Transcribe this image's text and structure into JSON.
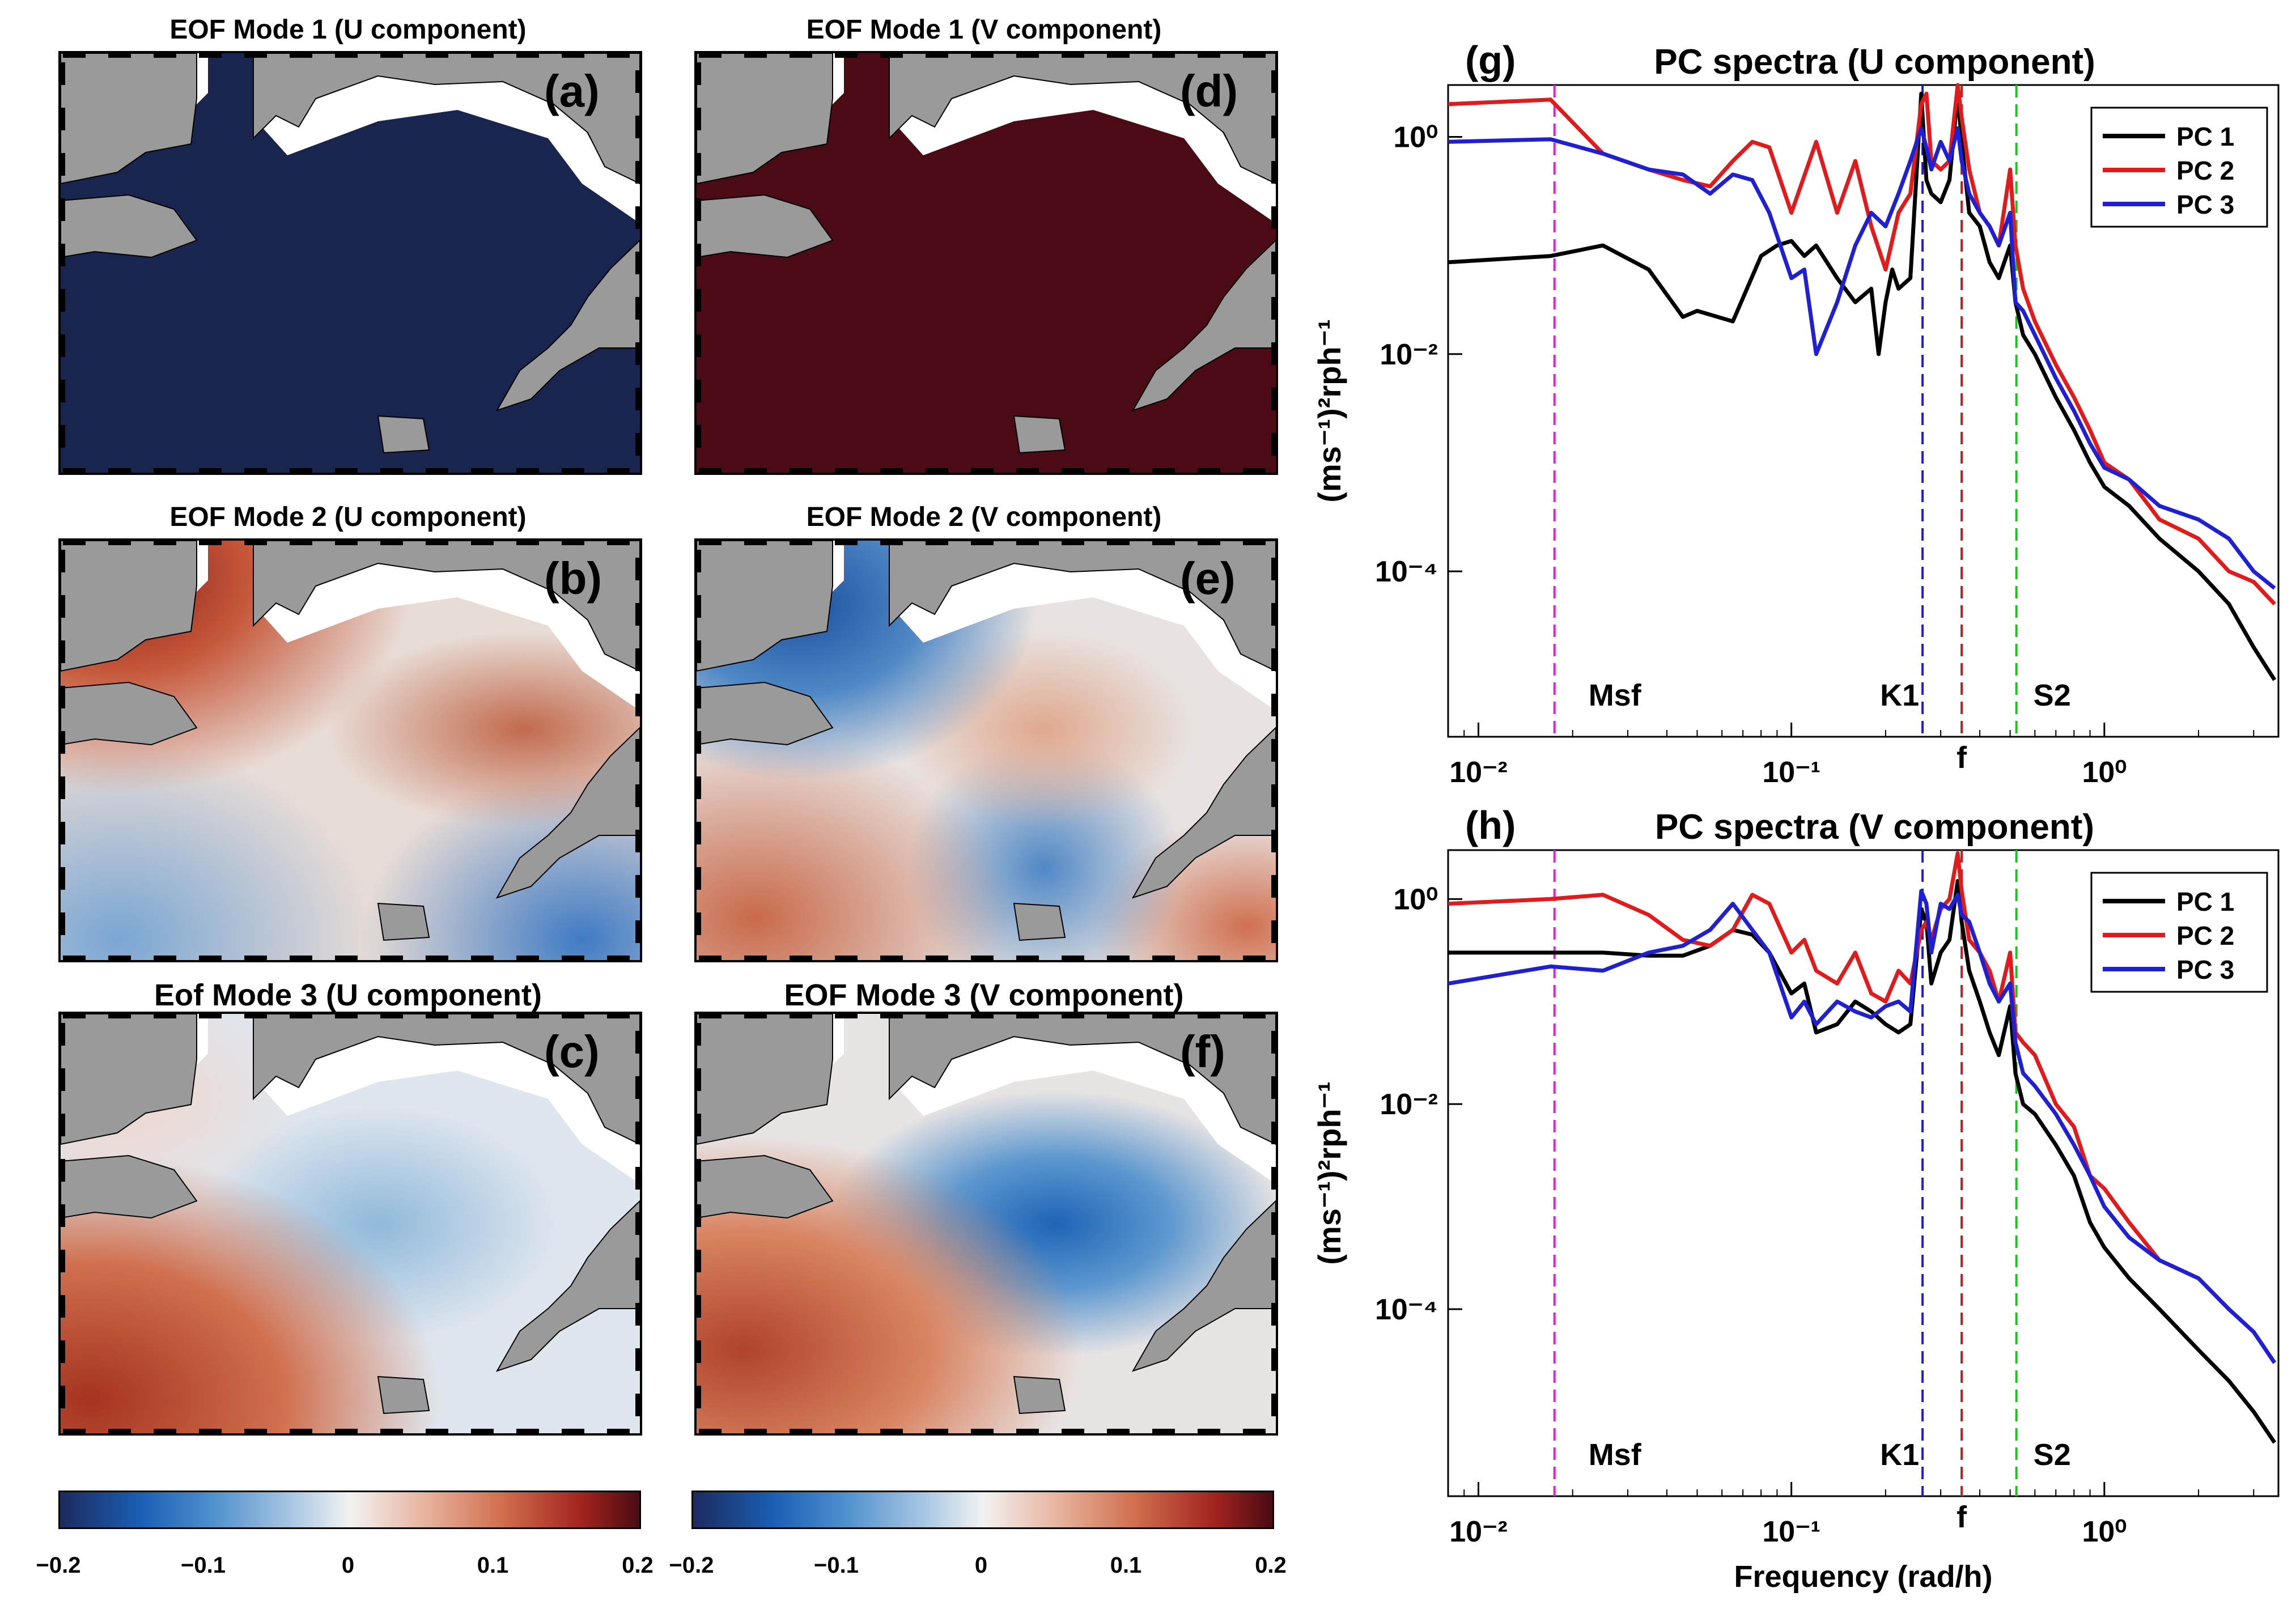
{
  "maps": [
    {
      "id": "a",
      "title": "EOF Mode 1 (U component)",
      "letter": "(a)",
      "pattern": "mode1u"
    },
    {
      "id": "b",
      "title": "EOF Mode 2 (U component)",
      "letter": "(b)",
      "pattern": "mode2u"
    },
    {
      "id": "c",
      "title": "Eof Mode 3 (U component)",
      "letter": "(c)",
      "pattern": "mode3u"
    },
    {
      "id": "d",
      "title": "EOF Mode 1 (V component)",
      "letter": "(d)",
      "pattern": "mode1v"
    },
    {
      "id": "e",
      "title": "EOF Mode 2 (V component)",
      "letter": "(e)",
      "pattern": "mode2v"
    },
    {
      "id": "f",
      "title": "EOF Mode 3 (V component)",
      "letter": "(f)",
      "pattern": "mode3v"
    }
  ],
  "colorbars": [
    {
      "ticks": [
        "−0.2",
        "−0.1",
        "0",
        "0.1",
        "0.2"
      ],
      "range": [
        -0.2,
        0.2
      ]
    },
    {
      "ticks": [
        "−0.2",
        "−0.1",
        "0",
        "0.1",
        "0.2"
      ],
      "range": [
        -0.2,
        0.2
      ]
    }
  ],
  "colors": {
    "land": "#9a9a9a",
    "pc1": "#000000",
    "pc2": "#e31a1c",
    "pc3": "#1f1fd6",
    "msf": "#e020e0",
    "k1": "#2020c0",
    "f": "#c02020",
    "s2": "#20c020"
  },
  "chart_data": [
    {
      "type": "line",
      "letter": "(g)",
      "title": "PC spectra (U component)",
      "xlabel": "",
      "ylabel": "(ms⁻¹)²rph⁻¹",
      "xscale": "log",
      "yscale": "log",
      "xlim": [
        0.008,
        3.6
      ],
      "ylim": [
        3e-06,
        3
      ],
      "xticks": [
        "10⁻²",
        "10⁻¹",
        "10⁰"
      ],
      "yticks": [
        "10⁰",
        "10⁻²",
        "10⁻⁴"
      ],
      "legend_position": "top-right",
      "vlines": [
        {
          "label": "Msf",
          "x": 0.0175
        },
        {
          "label": "K1",
          "x": 0.2625
        },
        {
          "label": "f",
          "x": 0.35
        },
        {
          "label": "S2",
          "x": 0.5236
        }
      ],
      "series": [
        {
          "name": "PC 1",
          "x": [
            0.008,
            0.017,
            0.025,
            0.035,
            0.045,
            0.05,
            0.065,
            0.08,
            0.09,
            0.1,
            0.11,
            0.12,
            0.14,
            0.16,
            0.18,
            0.19,
            0.2,
            0.21,
            0.22,
            0.24,
            0.26,
            0.27,
            0.28,
            0.3,
            0.32,
            0.34,
            0.35,
            0.37,
            0.4,
            0.43,
            0.46,
            0.5,
            0.52,
            0.55,
            0.6,
            0.7,
            0.8,
            0.9,
            1.0,
            1.2,
            1.5,
            2.0,
            2.5,
            3.0,
            3.5
          ],
          "y": [
            0.07,
            0.08,
            0.1,
            0.06,
            0.022,
            0.025,
            0.02,
            0.08,
            0.1,
            0.11,
            0.08,
            0.1,
            0.05,
            0.03,
            0.04,
            0.01,
            0.03,
            0.06,
            0.04,
            0.05,
            2.5,
            0.4,
            0.3,
            0.25,
            0.4,
            2.5,
            0.9,
            0.2,
            0.15,
            0.07,
            0.05,
            0.1,
            0.03,
            0.015,
            0.01,
            0.004,
            0.002,
            0.001,
            0.0006,
            0.0004,
            0.0002,
            0.0001,
            5e-05,
            2e-05,
            1e-05
          ]
        },
        {
          "name": "PC 2",
          "x": [
            0.008,
            0.017,
            0.025,
            0.035,
            0.045,
            0.055,
            0.065,
            0.075,
            0.085,
            0.1,
            0.12,
            0.14,
            0.16,
            0.18,
            0.2,
            0.22,
            0.24,
            0.26,
            0.27,
            0.28,
            0.3,
            0.32,
            0.34,
            0.35,
            0.37,
            0.4,
            0.43,
            0.46,
            0.5,
            0.52,
            0.55,
            0.6,
            0.7,
            0.8,
            0.9,
            1.0,
            1.2,
            1.5,
            2.0,
            2.5,
            3.0,
            3.5
          ],
          "y": [
            2.0,
            2.2,
            0.7,
            0.5,
            0.4,
            0.35,
            0.6,
            0.9,
            0.8,
            0.2,
            0.9,
            0.2,
            0.6,
            0.15,
            0.06,
            0.2,
            0.3,
            2.0,
            2.5,
            0.6,
            0.5,
            0.6,
            3.0,
            1.5,
            0.5,
            0.2,
            0.15,
            0.1,
            0.5,
            0.1,
            0.04,
            0.02,
            0.008,
            0.004,
            0.002,
            0.001,
            0.0007,
            0.0003,
            0.0002,
            0.0001,
            8e-05,
            5e-05
          ]
        },
        {
          "name": "PC 3",
          "x": [
            0.008,
            0.017,
            0.025,
            0.035,
            0.045,
            0.055,
            0.065,
            0.075,
            0.085,
            0.1,
            0.11,
            0.12,
            0.14,
            0.16,
            0.18,
            0.2,
            0.22,
            0.24,
            0.26,
            0.27,
            0.28,
            0.3,
            0.32,
            0.34,
            0.35,
            0.37,
            0.4,
            0.43,
            0.46,
            0.5,
            0.52,
            0.55,
            0.6,
            0.7,
            0.8,
            0.9,
            1.0,
            1.2,
            1.5,
            2.0,
            2.5,
            3.0,
            3.5
          ],
          "y": [
            0.9,
            0.95,
            0.7,
            0.5,
            0.45,
            0.3,
            0.45,
            0.4,
            0.2,
            0.05,
            0.06,
            0.01,
            0.03,
            0.1,
            0.2,
            0.15,
            0.3,
            0.6,
            1.2,
            0.8,
            0.5,
            0.9,
            0.6,
            1.2,
            0.6,
            0.3,
            0.2,
            0.15,
            0.1,
            0.2,
            0.03,
            0.025,
            0.015,
            0.006,
            0.003,
            0.0015,
            0.0009,
            0.0007,
            0.0004,
            0.0003,
            0.0002,
            0.0001,
            7e-05
          ]
        }
      ]
    },
    {
      "type": "line",
      "letter": "(h)",
      "title": "PC spectra (V component)",
      "xlabel": "Frequency (rad/h)",
      "ylabel": "(ms⁻¹)²rph⁻¹",
      "xscale": "log",
      "yscale": "log",
      "xlim": [
        0.008,
        3.6
      ],
      "ylim": [
        1.5e-06,
        3
      ],
      "xticks": [
        "10⁻²",
        "10⁻¹",
        "10⁰"
      ],
      "yticks": [
        "10⁰",
        "10⁻²",
        "10⁻⁴"
      ],
      "legend_position": "top-right",
      "vlines": [
        {
          "label": "Msf",
          "x": 0.0175
        },
        {
          "label": "K1",
          "x": 0.2625
        },
        {
          "label": "f",
          "x": 0.35
        },
        {
          "label": "S2",
          "x": 0.5236
        }
      ],
      "series": [
        {
          "name": "PC 1",
          "x": [
            0.008,
            0.017,
            0.025,
            0.035,
            0.045,
            0.055,
            0.065,
            0.075,
            0.085,
            0.1,
            0.11,
            0.12,
            0.14,
            0.16,
            0.18,
            0.2,
            0.22,
            0.24,
            0.26,
            0.27,
            0.28,
            0.3,
            0.32,
            0.34,
            0.35,
            0.37,
            0.4,
            0.43,
            0.46,
            0.5,
            0.52,
            0.55,
            0.6,
            0.7,
            0.8,
            0.9,
            1.0,
            1.2,
            1.5,
            2.0,
            2.5,
            3.0,
            3.5
          ],
          "y": [
            0.3,
            0.3,
            0.3,
            0.28,
            0.28,
            0.35,
            0.5,
            0.45,
            0.3,
            0.12,
            0.15,
            0.05,
            0.06,
            0.1,
            0.08,
            0.06,
            0.05,
            0.06,
            0.8,
            0.6,
            0.15,
            0.3,
            0.4,
            1.5,
            0.6,
            0.2,
            0.1,
            0.05,
            0.03,
            0.09,
            0.02,
            0.01,
            0.008,
            0.004,
            0.002,
            0.0007,
            0.0004,
            0.0002,
            0.0001,
            4e-05,
            2e-05,
            1e-05,
            5e-06
          ]
        },
        {
          "name": "PC 2",
          "x": [
            0.008,
            0.017,
            0.025,
            0.035,
            0.045,
            0.055,
            0.065,
            0.075,
            0.085,
            0.1,
            0.11,
            0.12,
            0.14,
            0.16,
            0.18,
            0.2,
            0.22,
            0.24,
            0.26,
            0.27,
            0.28,
            0.3,
            0.32,
            0.34,
            0.35,
            0.37,
            0.4,
            0.43,
            0.46,
            0.5,
            0.52,
            0.55,
            0.6,
            0.7,
            0.8,
            0.9,
            1.0,
            1.2,
            1.5,
            2.0,
            2.5,
            3.0,
            3.5
          ],
          "y": [
            0.9,
            1.0,
            1.1,
            0.7,
            0.4,
            0.35,
            0.5,
            1.1,
            0.9,
            0.3,
            0.4,
            0.2,
            0.15,
            0.3,
            0.12,
            0.1,
            0.2,
            0.15,
            0.5,
            0.6,
            0.4,
            0.8,
            1.0,
            2.8,
            1.2,
            0.4,
            0.3,
            0.2,
            0.1,
            0.3,
            0.05,
            0.04,
            0.03,
            0.01,
            0.006,
            0.002,
            0.0015,
            0.0007,
            0.0003,
            0.0002,
            0.0001,
            6e-05,
            3e-05
          ]
        },
        {
          "name": "PC 3",
          "x": [
            0.008,
            0.017,
            0.025,
            0.035,
            0.045,
            0.055,
            0.065,
            0.075,
            0.085,
            0.1,
            0.11,
            0.12,
            0.14,
            0.16,
            0.18,
            0.2,
            0.22,
            0.24,
            0.26,
            0.27,
            0.28,
            0.3,
            0.32,
            0.34,
            0.35,
            0.37,
            0.4,
            0.43,
            0.46,
            0.5,
            0.52,
            0.55,
            0.6,
            0.7,
            0.8,
            0.9,
            1.0,
            1.2,
            1.5,
            2.0,
            2.5,
            3.0,
            3.5
          ],
          "y": [
            0.15,
            0.22,
            0.2,
            0.3,
            0.35,
            0.5,
            0.9,
            0.5,
            0.3,
            0.07,
            0.1,
            0.06,
            0.1,
            0.08,
            0.07,
            0.09,
            0.1,
            0.08,
            1.2,
            0.9,
            0.3,
            0.9,
            0.8,
            1.1,
            0.7,
            0.6,
            0.3,
            0.15,
            0.1,
            0.15,
            0.04,
            0.02,
            0.015,
            0.008,
            0.004,
            0.002,
            0.001,
            0.0005,
            0.0003,
            0.0002,
            0.0001,
            6e-05,
            3e-05
          ]
        }
      ]
    }
  ]
}
